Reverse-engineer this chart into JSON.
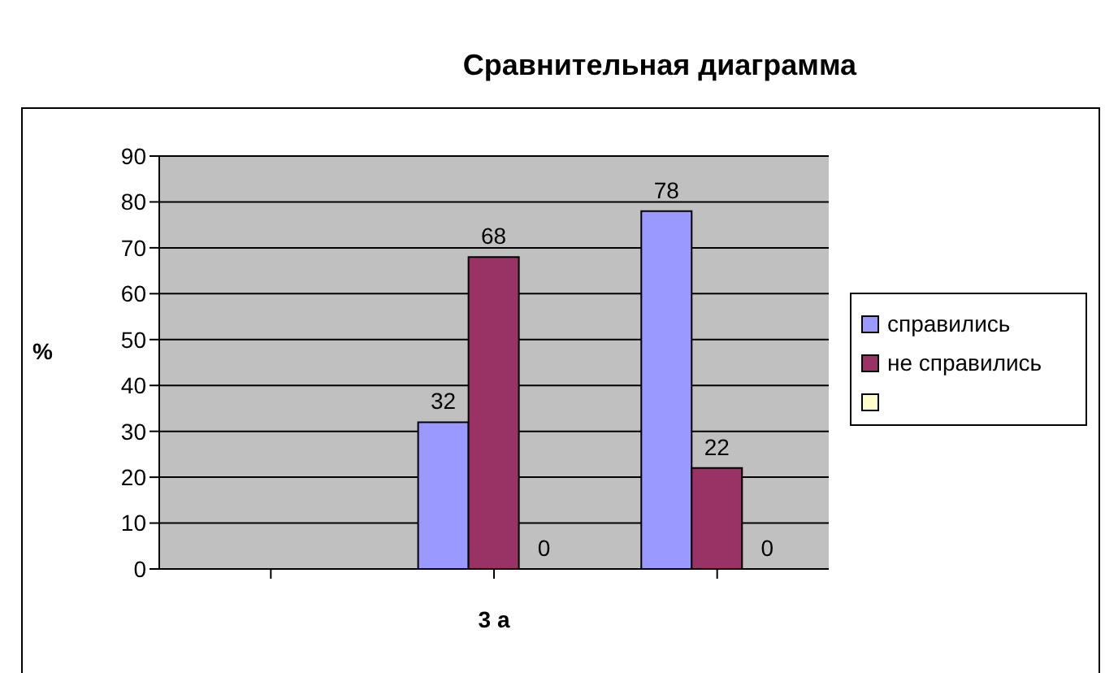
{
  "chart_data": {
    "type": "bar",
    "title": "Сравнительная диаграмма",
    "xlabel": "3 а",
    "ylabel": "%",
    "categories": [
      null,
      null,
      null
    ],
    "series": [
      {
        "name": "справились",
        "color": "#9999ff",
        "values": [
          null,
          32,
          78
        ]
      },
      {
        "name": "не справились",
        "color": "#993366",
        "values": [
          null,
          68,
          22
        ]
      },
      {
        "color": "#ffffcc",
        "values": [
          null,
          0,
          0
        ]
      }
    ],
    "ylim": [
      0,
      90
    ],
    "yticks": [
      0,
      10,
      20,
      30,
      40,
      50,
      60,
      70,
      80,
      90
    ],
    "grid": "y",
    "legend": "right",
    "data_labels": true
  }
}
